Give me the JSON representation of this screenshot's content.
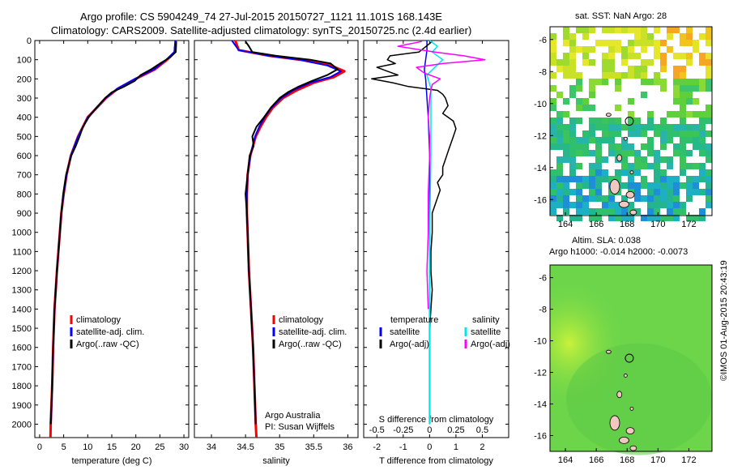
{
  "title": {
    "line1": "Argo profile: CS 5904249_74 27-Jul-2015 20150727_1121 11.101S 168.143E",
    "line2": "Climatology: CARS2009. Satellite-adjusted climatology: synTS_20150725.nc (2.4d earlier)"
  },
  "colors": {
    "climatology": "#ff0000",
    "satellite": "#0000ff",
    "argo": "#000000",
    "salinity_satellite": "#00e5ee",
    "salinity_argo": "#ff00ff"
  },
  "chart_data": [
    {
      "type": "line",
      "name": "temperature-profile",
      "xlabel": "temperature (deg C)",
      "ylabel": "",
      "xlim": [
        -1,
        31
      ],
      "ylim": [
        2070,
        0
      ],
      "x_ticks": [
        "0",
        "5",
        "10",
        "15",
        "20",
        "25",
        "30"
      ],
      "y_ticks": [
        "0",
        "100",
        "200",
        "300",
        "400",
        "500",
        "600",
        "700",
        "800",
        "900",
        "1000",
        "1100",
        "1200",
        "1300",
        "1400",
        "1500",
        "1600",
        "1700",
        "1800",
        "1900",
        "2000"
      ],
      "legend": [
        "climatology",
        "satellite-adj. clim.",
        "Argo(..raw -QC)"
      ],
      "legend_position": "bottom-right",
      "series": [
        {
          "name": "climatology",
          "depth": [
            0,
            60,
            100,
            150,
            200,
            250,
            300,
            400,
            500,
            600,
            700,
            800,
            900,
            1000,
            1200,
            1400,
            1600,
            1800,
            2000,
            2070
          ],
          "values": [
            28.3,
            28.1,
            26.5,
            24.0,
            20.0,
            16.3,
            13.8,
            10.0,
            8.0,
            6.5,
            5.6,
            5.0,
            4.5,
            4.2,
            3.6,
            3.1,
            2.8,
            2.6,
            2.3,
            2.25
          ]
        },
        {
          "name": "satellite-adj. clim.",
          "depth": [
            0,
            60,
            100,
            150,
            200,
            250,
            300,
            400,
            500,
            600,
            700,
            800,
            900,
            1000,
            1200,
            1400,
            1600,
            1800,
            2000
          ],
          "values": [
            28.2,
            28.0,
            26.3,
            23.8,
            19.8,
            16.2,
            13.7,
            10.0,
            8.0,
            6.5,
            5.6,
            5.0,
            4.5,
            4.2,
            3.6,
            3.1,
            2.8,
            2.6,
            2.35
          ]
        },
        {
          "name": "Argo(..raw -QC)",
          "depth": [
            5,
            60,
            90,
            120,
            150,
            180,
            210,
            240,
            270,
            300,
            350,
            400,
            450,
            500,
            550,
            600,
            700,
            800,
            900,
            1000,
            1200,
            1400,
            1600,
            1800,
            2000
          ],
          "values": [
            28.4,
            28.3,
            27.0,
            25.0,
            23.2,
            21.0,
            19.8,
            17.6,
            15.0,
            13.6,
            11.8,
            10.2,
            9.0,
            8.3,
            7.5,
            6.6,
            5.5,
            4.9,
            4.5,
            4.2,
            3.6,
            3.1,
            2.8,
            2.6,
            2.3
          ]
        }
      ]
    },
    {
      "type": "line",
      "name": "salinity-profile",
      "xlabel": "salinity",
      "xlim": [
        33.75,
        36.15
      ],
      "ylim": [
        2070,
        0
      ],
      "x_ticks": [
        "34",
        "34.5",
        "35",
        "35.5",
        "36"
      ],
      "legend": [
        "climatology",
        "satellite-adj. clim.",
        "Argo(..raw -QC)"
      ],
      "legend_position": "bottom-right",
      "annotation": [
        "Argo Australia",
        "PI: Susan Wijffels"
      ],
      "series": [
        {
          "name": "climatology",
          "depth": [
            0,
            50,
            80,
            100,
            130,
            160,
            190,
            220,
            260,
            300,
            350,
            400,
            450,
            500,
            600,
            700,
            800,
            900,
            1000,
            1200,
            1400,
            1600,
            1800,
            2000,
            2070
          ],
          "values": [
            34.35,
            34.4,
            34.85,
            35.3,
            35.75,
            35.95,
            35.8,
            35.5,
            35.25,
            35.05,
            34.9,
            34.8,
            34.72,
            34.65,
            34.57,
            34.53,
            34.52,
            34.52,
            34.53,
            34.55,
            34.58,
            34.61,
            34.63,
            34.65,
            34.66
          ]
        },
        {
          "name": "satellite-adj. clim.",
          "depth": [
            0,
            50,
            80,
            100,
            130,
            160,
            190,
            220,
            260,
            300,
            350,
            400,
            450,
            500,
            600,
            700,
            800,
            900,
            1000,
            1200,
            1400,
            1600,
            1800,
            2000
          ],
          "values": [
            34.3,
            34.4,
            34.85,
            35.3,
            35.7,
            35.9,
            35.75,
            35.45,
            35.2,
            35.02,
            34.88,
            34.78,
            34.7,
            34.64,
            34.57,
            34.53,
            34.52,
            34.52,
            34.53,
            34.55,
            34.58,
            34.61,
            34.63,
            34.65
          ]
        },
        {
          "name": "Argo(..raw -QC)",
          "depth": [
            5,
            30,
            60,
            80,
            100,
            120,
            150,
            180,
            210,
            240,
            270,
            300,
            350,
            400,
            450,
            500,
            550,
            600,
            700,
            800,
            900,
            1000,
            1200,
            1400,
            1600,
            1800,
            2000
          ],
          "values": [
            34.5,
            34.55,
            34.6,
            34.95,
            35.45,
            35.75,
            35.85,
            35.7,
            35.48,
            35.28,
            35.12,
            35.0,
            34.87,
            34.77,
            34.66,
            34.6,
            34.62,
            34.56,
            34.53,
            34.5,
            34.52,
            34.53,
            34.55,
            34.58,
            34.61,
            34.63,
            34.65
          ]
        }
      ]
    },
    {
      "type": "line",
      "name": "difference-profile",
      "xlabel": "T difference from climatology",
      "xlabel2": "S difference from climatology",
      "xlim": [
        -2.5,
        3.0
      ],
      "ylim": [
        2070,
        0
      ],
      "x_ticks": [
        "-2",
        "-1",
        "0",
        "1",
        "2"
      ],
      "x2_ticks": [
        "-0.5",
        "-0.25",
        "0",
        "0.25",
        "0.5"
      ],
      "x2_tick_values": [
        -2.0,
        -1.0,
        0.0,
        1.0,
        2.0
      ],
      "legend_temperature": {
        "title": "temperature",
        "items": [
          "satellite",
          "Argo(-adj)"
        ]
      },
      "legend_salinity": {
        "title": "salinity",
        "items": [
          "satellite",
          "Argo(-adj)"
        ]
      },
      "series": [
        {
          "name": "temperature satellite",
          "depth": [
            0,
            50,
            100,
            150,
            200,
            300,
            400,
            600,
            800,
            1000,
            1400,
            2000
          ],
          "values": [
            -0.1,
            -0.1,
            -0.15,
            -0.2,
            -0.15,
            -0.1,
            -0.05,
            0.0,
            0.0,
            0.0,
            0.0,
            0.0
          ]
        },
        {
          "name": "temperature Argo(-adj)",
          "depth": [
            5,
            60,
            80,
            100,
            120,
            140,
            160,
            180,
            200,
            220,
            240,
            260,
            280,
            300,
            340,
            380,
            420,
            460,
            500,
            540,
            580,
            620,
            660,
            700,
            740,
            780,
            820,
            900,
            1000,
            1100,
            1200,
            1300,
            1400,
            1500,
            1700,
            2000
          ],
          "values": [
            0.1,
            -0.4,
            -1.5,
            -1.6,
            -1.3,
            -2.0,
            -1.6,
            -1.2,
            -2.2,
            -1.4,
            -0.8,
            0.3,
            0.5,
            0.6,
            0.7,
            0.5,
            0.9,
            1.0,
            0.9,
            0.8,
            0.7,
            0.6,
            0.5,
            0.5,
            0.3,
            0.4,
            0.3,
            0.1,
            0.1,
            0.05,
            0.05,
            0.1,
            0.05,
            0.0,
            0.0,
            0.0
          ]
        },
        {
          "name": "salinity satellite",
          "depth": [
            0,
            30,
            60,
            100,
            140,
            180,
            250,
            400,
            600,
            1000,
            1500,
            2000
          ],
          "values": [
            0.0,
            0.3,
            0.1,
            0.5,
            0.2,
            -0.1,
            0.05,
            0.05,
            0.05,
            0.0,
            0.0,
            0.0
          ]
        },
        {
          "name": "salinity Argo(-adj)",
          "depth": [
            5,
            30,
            60,
            80,
            100,
            120,
            140,
            170,
            200,
            230,
            260,
            300,
            400,
            500,
            600,
            800,
            1000,
            1200,
            1400
          ],
          "values": [
            -0.3,
            -1.2,
            0.2,
            1.3,
            2.1,
            0.5,
            -0.5,
            -0.2,
            0.4,
            0.1,
            0.05,
            0.0,
            -0.05,
            0.0,
            0.0,
            -0.05,
            -0.05,
            -0.1,
            -0.05
          ]
        }
      ]
    },
    {
      "type": "heatmap",
      "name": "sst-map",
      "title": "sat. SST: NaN Argo: 28",
      "xlim": [
        163,
        173.5
      ],
      "ylim": [
        -17,
        -5.2
      ],
      "x_ticks": [
        "164",
        "166",
        "168",
        "170",
        "172"
      ],
      "y_ticks": [
        "-6",
        "-8",
        "-10",
        "-12",
        "-14",
        "-16"
      ],
      "marker": {
        "lon": 168.143,
        "lat": -11.101
      }
    },
    {
      "type": "heatmap",
      "name": "sla-map",
      "title": "Altim. SLA: 0.038",
      "subtitle": "Argo h1000: -0.014 h2000: -0.0073",
      "xlim": [
        163,
        173.5
      ],
      "ylim": [
        -17,
        -5.2
      ],
      "x_ticks": [
        "164",
        "166",
        "168",
        "170",
        "172"
      ],
      "y_ticks": [
        "-6",
        "-8",
        "-10",
        "-12",
        "-14",
        "-16"
      ],
      "marker": {
        "lon": 168.143,
        "lat": -11.101
      }
    }
  ],
  "credit": "©IMOS 01-Aug-2015 20:43:19"
}
